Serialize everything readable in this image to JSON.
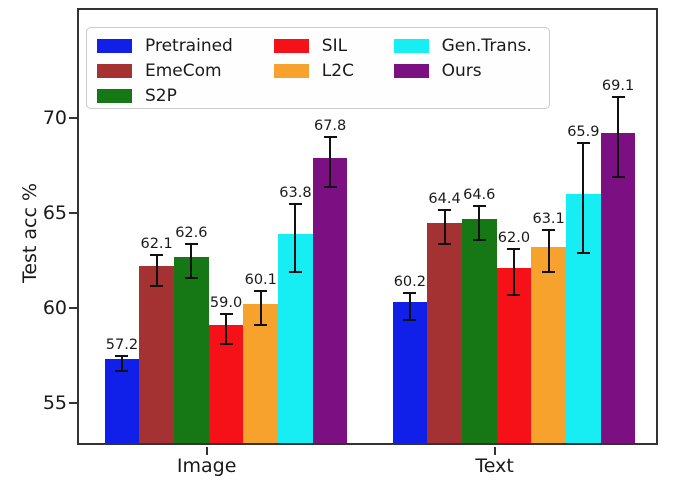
{
  "chart_data": {
    "type": "bar",
    "title": "",
    "xlabel": "",
    "ylabel": "Test acc %",
    "categories": [
      "Image",
      "Text"
    ],
    "series": [
      {
        "name": "Pretrained",
        "color": "#1120e8",
        "values": [
          57.2,
          60.2
        ],
        "errors": [
          0.4,
          0.7
        ]
      },
      {
        "name": "EmeCom",
        "color": "#a43232",
        "values": [
          62.1,
          64.4
        ],
        "errors": [
          0.8,
          0.9
        ]
      },
      {
        "name": "S2P",
        "color": "#157815",
        "values": [
          62.6,
          64.6
        ],
        "errors": [
          0.9,
          0.9
        ]
      },
      {
        "name": "SIL",
        "color": "#f61118",
        "values": [
          59.0,
          62.0
        ],
        "errors": [
          0.8,
          1.2
        ]
      },
      {
        "name": "L2C",
        "color": "#f8a22e",
        "values": [
          60.1,
          63.1
        ],
        "errors": [
          0.9,
          1.1
        ]
      },
      {
        "name": "Gen.Trans.",
        "color": "#17eef4",
        "values": [
          63.8,
          65.9
        ],
        "errors": [
          1.8,
          2.9
        ]
      },
      {
        "name": "Ours",
        "color": "#7c0f82",
        "values": [
          67.8,
          69.1
        ],
        "errors": [
          1.3,
          2.1
        ]
      }
    ],
    "value_labels": {
      "Image": [
        "57.2",
        "62.1",
        "62.6",
        "59.0",
        "60.1",
        "63.8",
        "67.8"
      ],
      "Text": [
        "60.2",
        "64.4",
        "64.6",
        "62.0",
        "63.1",
        "65.9",
        "69.1"
      ]
    },
    "yticks": [
      "55",
      "60",
      "65",
      "70"
    ],
    "ylim": [
      52.8,
      75.8
    ],
    "grid": false,
    "error_bars": true,
    "legend_position": "upper-left-inside",
    "legend_columns": 3,
    "legend_column_items": [
      [
        "Pretrained",
        "EmeCom",
        "S2P"
      ],
      [
        "SIL",
        "L2C"
      ],
      [
        "Gen.Trans.",
        "Ours"
      ]
    ],
    "axis_color": "#333333",
    "error_bar_color": "#111111",
    "text_color": "#1a1a1a"
  }
}
